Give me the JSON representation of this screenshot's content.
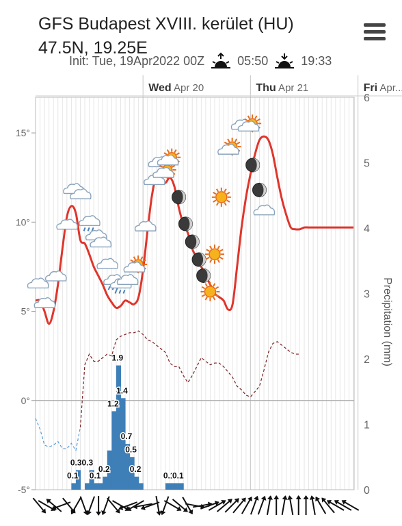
{
  "header": {
    "title": "GFS Budapest XVIII. kerület (HU) 47.5N, 19.25E",
    "init": "Init: Tue, 19Apr2022 00Z",
    "sunrise": "05:50",
    "sunset": "19:33",
    "sunrise_icon": "sunrise-icon",
    "sunset_icon": "sunset-icon",
    "menu_icon": "hamburger-menu-icon"
  },
  "chart_data": {
    "type": "line",
    "days": [
      {
        "name": "Wed",
        "date": "Apr 20",
        "hour": 24
      },
      {
        "name": "Thu",
        "date": "Apr 21",
        "hour": 48
      },
      {
        "name": "Fri",
        "date": "Apr...",
        "hour": 72
      }
    ],
    "temperature": {
      "hours": [
        0,
        1,
        2,
        3,
        4,
        5,
        6,
        7,
        8,
        9,
        10,
        11,
        12,
        13,
        14,
        15,
        16,
        17,
        18,
        19,
        20,
        21,
        22,
        23,
        24,
        25,
        26,
        27,
        28,
        29,
        30,
        31,
        32,
        33,
        34,
        35,
        36,
        37,
        38,
        39,
        40,
        41,
        42,
        43,
        44,
        45,
        46,
        47,
        48,
        49,
        50,
        51,
        52,
        53,
        54,
        55,
        56,
        57,
        58,
        59,
        60,
        61,
        62,
        63,
        64,
        65,
        66,
        67,
        68,
        69,
        70,
        71,
        72
      ],
      "values": [
        5.6,
        5.6,
        5.0,
        4.3,
        5.0,
        6.5,
        8.5,
        10.3,
        10.9,
        10.5,
        9.0,
        8.8,
        8.2,
        7.5,
        7.0,
        6.5,
        5.9,
        5.5,
        5.2,
        5.3,
        5.6,
        5.5,
        5.4,
        5.8,
        7.3,
        9.5,
        11.5,
        12.6,
        12.4,
        12.2,
        12.5,
        12.0,
        10.8,
        9.9,
        9.4,
        8.5,
        8.0,
        7.5,
        7.0,
        6.5,
        6.0,
        5.8,
        5.6,
        5.1,
        5.4,
        7.5,
        9.7,
        11.4,
        12.7,
        13.8,
        14.6,
        14.8,
        14.6,
        13.8,
        12.5,
        11.3,
        10.4,
        9.7,
        9.6,
        9.6,
        9.7,
        9.7,
        9.7,
        9.7,
        9.7,
        9.7,
        9.7,
        9.7,
        9.7,
        9.7,
        9.7,
        9.7,
        9.7
      ],
      "ylim": [
        -5,
        17
      ],
      "ticks": [
        -5,
        0,
        5,
        10,
        15
      ],
      "tick_labels": [
        "-5°",
        "0°",
        "5°",
        "10°",
        "15°"
      ]
    },
    "dewpoint": {
      "hours": [
        0,
        1,
        2,
        3,
        4,
        5,
        6,
        7,
        8,
        9,
        10,
        11,
        12,
        13,
        14,
        15,
        16,
        17,
        18,
        19,
        20,
        21,
        22,
        23,
        24,
        25,
        26,
        27,
        28,
        29,
        30,
        31,
        32,
        33,
        34,
        35,
        36,
        37,
        38,
        39,
        40,
        41,
        42,
        43,
        44,
        45,
        46,
        47,
        48,
        49,
        50,
        51,
        52,
        53,
        54,
        55,
        56,
        57,
        58,
        59
      ],
      "values": [
        -1.0,
        -1.6,
        -2.5,
        -2.6,
        -2.5,
        -2.3,
        -2.7,
        -2.7,
        -2.4,
        -2.8,
        -1.5,
        2.0,
        2.6,
        2.2,
        2.2,
        2.4,
        2.6,
        2.5,
        3.4,
        3.6,
        3.7,
        3.8,
        3.8,
        3.9,
        3.7,
        3.4,
        3.3,
        3.1,
        2.9,
        2.7,
        2.1,
        1.9,
        1.9,
        1.4,
        1.0,
        1.4,
        1.9,
        2.4,
        2.2,
        2.0,
        2.1,
        2.1,
        1.9,
        1.6,
        1.3,
        0.8,
        0.6,
        0.3,
        0.2,
        0.5,
        0.8,
        1.7,
        2.7,
        3.2,
        3.3,
        3.1,
        2.9,
        2.7,
        2.6,
        2.6
      ],
      "freeze_index": 10
    },
    "precipitation": {
      "ylim": [
        0,
        6
      ],
      "ticks": [
        0,
        1,
        2,
        3,
        4,
        5,
        6
      ],
      "ylabel": "Precipitation (mm)",
      "bars": [
        {
          "hour": 8,
          "value": 0.1
        },
        {
          "hour": 9,
          "value": 0.3
        },
        {
          "hour": 11,
          "value": 0.1
        },
        {
          "hour": 12,
          "value": 0.3
        },
        {
          "hour": 13,
          "value": 0.1
        },
        {
          "hour": 14,
          "value": 0.1
        },
        {
          "hour": 15,
          "value": 0.2
        },
        {
          "hour": 16,
          "value": 0.6
        },
        {
          "hour": 17,
          "value": 1.2
        },
        {
          "hour": 18,
          "value": 1.9
        },
        {
          "hour": 19,
          "value": 1.4
        },
        {
          "hour": 20,
          "value": 0.7
        },
        {
          "hour": 21,
          "value": 0.5
        },
        {
          "hour": 22,
          "value": 0.2
        },
        {
          "hour": 23,
          "value": 0.1
        },
        {
          "hour": 29,
          "value": 0.1
        },
        {
          "hour": 30,
          "value": 0.1
        },
        {
          "hour": 31,
          "value": 0.1
        },
        {
          "hour": 32,
          "value": 0.1
        }
      ],
      "labels": [
        {
          "hour": 8,
          "value": 0.1,
          "text": "0.1"
        },
        {
          "hour": 10,
          "value": 0.3,
          "text": "0.30.3"
        },
        {
          "hour": 13,
          "value": 0.1,
          "text": "0.1"
        },
        {
          "hour": 15,
          "value": 0.2,
          "text": "0.2"
        },
        {
          "hour": 17,
          "value": 1.2,
          "text": "1.2"
        },
        {
          "hour": 18,
          "value": 1.9,
          "text": "1.9"
        },
        {
          "hour": 19,
          "value": 1.4,
          "text": "1.4"
        },
        {
          "hour": 20,
          "value": 0.7,
          "text": "0.7"
        },
        {
          "hour": 21,
          "value": 0.5,
          "text": "0.5"
        },
        {
          "hour": 22,
          "value": 0.2,
          "text": "0.2"
        },
        {
          "hour": 29.5,
          "value": 0.1,
          "text": "0.1"
        },
        {
          "hour": 31.5,
          "value": 0.1,
          "text": "0.1"
        }
      ]
    },
    "weather_icons": [
      {
        "hour": 0.5,
        "temp": 6.5,
        "icon": "cloud-icon"
      },
      {
        "hour": 2,
        "temp": 5.4,
        "icon": "cloud-icon"
      },
      {
        "hour": 4.5,
        "temp": 6.9,
        "icon": "cloud-icon"
      },
      {
        "hour": 7,
        "temp": 9.8,
        "icon": "cloud-icon"
      },
      {
        "hour": 8.5,
        "temp": 11.8,
        "icon": "cloud-icon"
      },
      {
        "hour": 10,
        "temp": 11.5,
        "icon": "cloud-icon"
      },
      {
        "hour": 12,
        "temp": 10.0,
        "icon": "cloud-rain-icon"
      },
      {
        "hour": 13.5,
        "temp": 9.2,
        "icon": "cloud-rain-icon"
      },
      {
        "hour": 14.5,
        "temp": 8.8,
        "icon": "cloud-icon"
      },
      {
        "hour": 16,
        "temp": 7.6,
        "icon": "cloud-icon"
      },
      {
        "hour": 17.5,
        "temp": 6.7,
        "icon": "cloud-rain-icon"
      },
      {
        "hour": 19,
        "temp": 6.5,
        "icon": "cloud-rain-icon"
      },
      {
        "hour": 20.5,
        "temp": 6.7,
        "icon": "cloud-icon"
      },
      {
        "hour": 22,
        "temp": 7.4,
        "icon": "partly-sunny-icon"
      },
      {
        "hour": 24.5,
        "temp": 9.7,
        "icon": "cloud-icon"
      },
      {
        "hour": 26.5,
        "temp": 12.3,
        "icon": "cloud-icon"
      },
      {
        "hour": 27.5,
        "temp": 13.3,
        "icon": "cloud-icon"
      },
      {
        "hour": 28.5,
        "temp": 12.7,
        "icon": "partly-sunny-icon"
      },
      {
        "hour": 29.5,
        "temp": 13.4,
        "icon": "partly-sunny-icon"
      },
      {
        "hour": 32,
        "temp": 11.4,
        "icon": "moon-icon"
      },
      {
        "hour": 33.5,
        "temp": 9.9,
        "icon": "moon-icon"
      },
      {
        "hour": 35,
        "temp": 8.9,
        "icon": "moon-icon"
      },
      {
        "hour": 36.5,
        "temp": 7.9,
        "icon": "moon-icon"
      },
      {
        "hour": 37.5,
        "temp": 7.0,
        "icon": "moon-icon"
      },
      {
        "hour": 39,
        "temp": 6.1,
        "icon": "sun-icon"
      },
      {
        "hour": 40,
        "temp": 8.2,
        "icon": "sun-icon"
      },
      {
        "hour": 41.5,
        "temp": 11.4,
        "icon": "sun-icon"
      },
      {
        "hour": 43,
        "temp": 14.0,
        "icon": "partly-sunny-icon"
      },
      {
        "hour": 46,
        "temp": 15.4,
        "icon": "cloud-icon"
      },
      {
        "hour": 47.5,
        "temp": 15.3,
        "icon": "partly-sunny-icon"
      },
      {
        "hour": 48.5,
        "temp": 13.2,
        "icon": "moon-icon"
      },
      {
        "hour": 50,
        "temp": 11.8,
        "icon": "moon-icon"
      },
      {
        "hour": 51,
        "temp": 10.6,
        "icon": "cloud-icon"
      }
    ],
    "wind_directions_deg": [
      140,
      120,
      310,
      250,
      140,
      210,
      160,
      200,
      180,
      200,
      140,
      120,
      250,
      240,
      260,
      250,
      170,
      200,
      120,
      130,
      150,
      100,
      80,
      70,
      60,
      50,
      45,
      40,
      30,
      20,
      20,
      10,
      0,
      10,
      350,
      0,
      0,
      350,
      330,
      320,
      300,
      300,
      300
    ]
  }
}
